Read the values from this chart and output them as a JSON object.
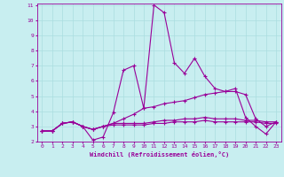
{
  "xlabel": "Windchill (Refroidissement éolien,°C)",
  "background_color": "#c8eef0",
  "line_color": "#990099",
  "grid_color": "#aadde0",
  "x_values": [
    0,
    1,
    2,
    3,
    4,
    5,
    6,
    7,
    8,
    9,
    10,
    11,
    12,
    13,
    14,
    15,
    16,
    17,
    18,
    19,
    20,
    21,
    22,
    23
  ],
  "line1": [
    2.7,
    2.7,
    3.2,
    3.3,
    3.0,
    2.1,
    2.3,
    3.9,
    6.7,
    7.0,
    4.2,
    11.0,
    10.5,
    7.2,
    6.5,
    7.5,
    6.3,
    5.5,
    5.3,
    5.5,
    3.6,
    3.0,
    2.5,
    3.3
  ],
  "line2": [
    2.7,
    2.7,
    3.2,
    3.3,
    3.0,
    2.8,
    3.0,
    3.2,
    3.5,
    3.8,
    4.2,
    4.3,
    4.5,
    4.6,
    4.7,
    4.9,
    5.1,
    5.2,
    5.3,
    5.3,
    5.1,
    3.5,
    3.0,
    3.3
  ],
  "line3": [
    2.7,
    2.7,
    3.2,
    3.3,
    3.0,
    2.8,
    3.0,
    3.2,
    3.2,
    3.2,
    3.2,
    3.3,
    3.4,
    3.4,
    3.5,
    3.5,
    3.6,
    3.5,
    3.5,
    3.5,
    3.4,
    3.4,
    3.3,
    3.3
  ],
  "line4": [
    2.7,
    2.7,
    3.2,
    3.3,
    3.0,
    2.8,
    3.0,
    3.1,
    3.1,
    3.1,
    3.1,
    3.2,
    3.2,
    3.3,
    3.3,
    3.3,
    3.4,
    3.3,
    3.3,
    3.3,
    3.3,
    3.3,
    3.2,
    3.2
  ],
  "ylim": [
    2.0,
    11.0
  ],
  "yticks": [
    2,
    3,
    4,
    5,
    6,
    7,
    8,
    9,
    10,
    11
  ],
  "xlim": [
    -0.5,
    23.5
  ]
}
